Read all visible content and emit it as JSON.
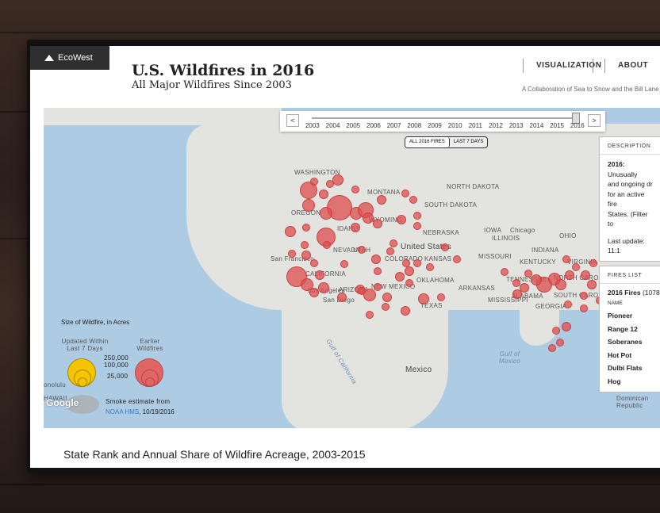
{
  "header": {
    "logo": "EcoWest",
    "title": "U.S. Wildfires in 2016",
    "subtitle": "All Major Wildfires Since 2003",
    "nav": [
      "VISUALIZATION",
      "ABOUT"
    ],
    "collab": "A Collaboration of Sea to Snow and the Bill Lane C"
  },
  "timeline": {
    "prev": "<",
    "next": ">",
    "years": [
      "2003",
      "2004",
      "2005",
      "2006",
      "2007",
      "2008",
      "2009",
      "2010",
      "2011",
      "2012",
      "2013",
      "2014",
      "2015",
      "2016"
    ]
  },
  "toggle": {
    "all": "ALL 2016 FIRES",
    "last": "LAST 7 DAYS"
  },
  "map_labels": {
    "washington": "WASHINGTON",
    "montana": "MONTANA",
    "north_dakota": "NORTH DAKOTA",
    "south_dakota": "SOUTH DAKOTA",
    "oregon": "OREGON",
    "idaho": "IDAHO",
    "wyoming": "WYOMING",
    "nebraska": "NEBRASKA",
    "iowa": "IOWA",
    "illinois": "ILLINOIS",
    "indiana": "INDIANA",
    "ohio": "OHIO",
    "nevada": "NEVADA",
    "utah": "UTAH",
    "colorado": "COLORADO",
    "kansas": "KANSAS",
    "missouri": "MISSOURI",
    "california": "CALIFORNIA",
    "arizona": "ARIZONA",
    "new_mexico": "NEW MEXICO",
    "oklahoma": "OKLAHOMA",
    "arkansas": "ARKANSAS",
    "tennessee": "TENNESSEE",
    "north_carolina": "NORTH CAROLINA",
    "south_carolina": "SOUTH CAROLINA",
    "georgia": "GEORGIA",
    "alabama": "ALABAMA",
    "mississippi": "MISSISSIPPI",
    "texas": "TEXAS",
    "kentucky": "KENTUCKY",
    "virginia": "VIRGINIA",
    "united_states": "United States",
    "mexico": "Mexico",
    "chicago": "Chicago",
    "san_francisco": "San Francisco",
    "los_angeles": "Los Angeles",
    "san_diego": "San Diego",
    "gulf_california": "Gulf of California",
    "gulf_mexico": "Gulf of Mexico",
    "dominican": "Dominican Republic",
    "honolulu": "Honolulu",
    "hawaii": "HAWAII"
  },
  "description": {
    "heading": "DESCRIPTION",
    "year": "2016:",
    "text1": "Unusually",
    "text2": "and ongoing dr",
    "text3": "for an active fire",
    "text4": "States. (Filter to",
    "update": "Last update: 11:1"
  },
  "fires_list": {
    "heading": "FIRES LIST",
    "summary_bold": "2016 Fires",
    "summary_count": "(1078",
    "column": "NAME",
    "items": [
      "Pioneer",
      "Range 12",
      "Soberanes",
      "Hot Pot",
      "Dulbi Flats",
      "Hog"
    ]
  },
  "legend": {
    "title": "Size of Wildfire, in Acres",
    "recent": [
      "Updated Within",
      "Last 7 Days"
    ],
    "earlier": [
      "Earlier",
      "Wildfires"
    ],
    "sizes": [
      "250,000",
      "100,000",
      "25,000"
    ],
    "smoke_text": "Smoke estimate from",
    "smoke_source": "NOAA HMS",
    "smoke_date": ", 10/19/2016"
  },
  "google": "Google",
  "footer": {
    "section_title": "State Rank and Annual Share of Wildfire Acreage, 2003-2015"
  },
  "colors": {
    "fire": "#dd4e4e",
    "recent": "#f5c400",
    "water": "#aecbe4",
    "land": "#e3e3e0"
  }
}
